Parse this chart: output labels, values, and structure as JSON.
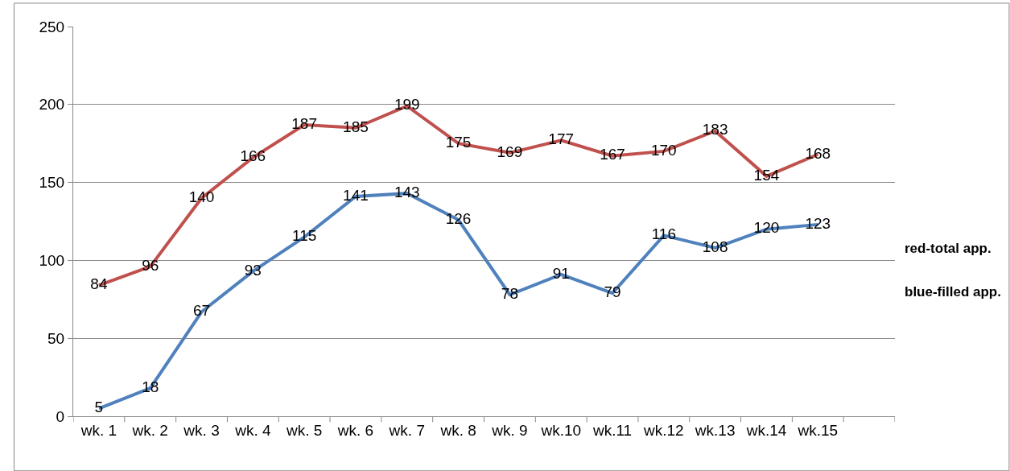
{
  "chart_data": {
    "type": "line",
    "categories": [
      "wk. 1",
      "wk. 2",
      "wk. 3",
      "wk. 4",
      "wk. 5",
      "wk. 6",
      "wk. 7",
      "wk. 8",
      "wk. 9",
      "wk.10",
      "wk.11",
      "wk.12",
      "wk.13",
      "wk.14",
      "wk.15",
      null
    ],
    "series": [
      {
        "color": "#c0504d",
        "values": [
          84,
          96,
          140,
          166,
          187,
          185,
          199,
          175,
          169,
          177,
          167,
          170,
          183,
          154,
          168,
          null
        ]
      },
      {
        "color": "#4f81bd",
        "values": [
          5,
          18,
          67,
          93,
          115,
          141,
          143,
          126,
          78,
          91,
          79,
          116,
          108,
          120,
          123,
          null
        ]
      }
    ],
    "ylim": [
      0,
      250
    ],
    "yticks": [
      0,
      50,
      100,
      150,
      200,
      250
    ],
    "grid": "y",
    "data_labels": true,
    "marker": "none",
    "line_style": "solid",
    "annotations": [
      "red-total app.",
      "blue-filled app."
    ]
  }
}
